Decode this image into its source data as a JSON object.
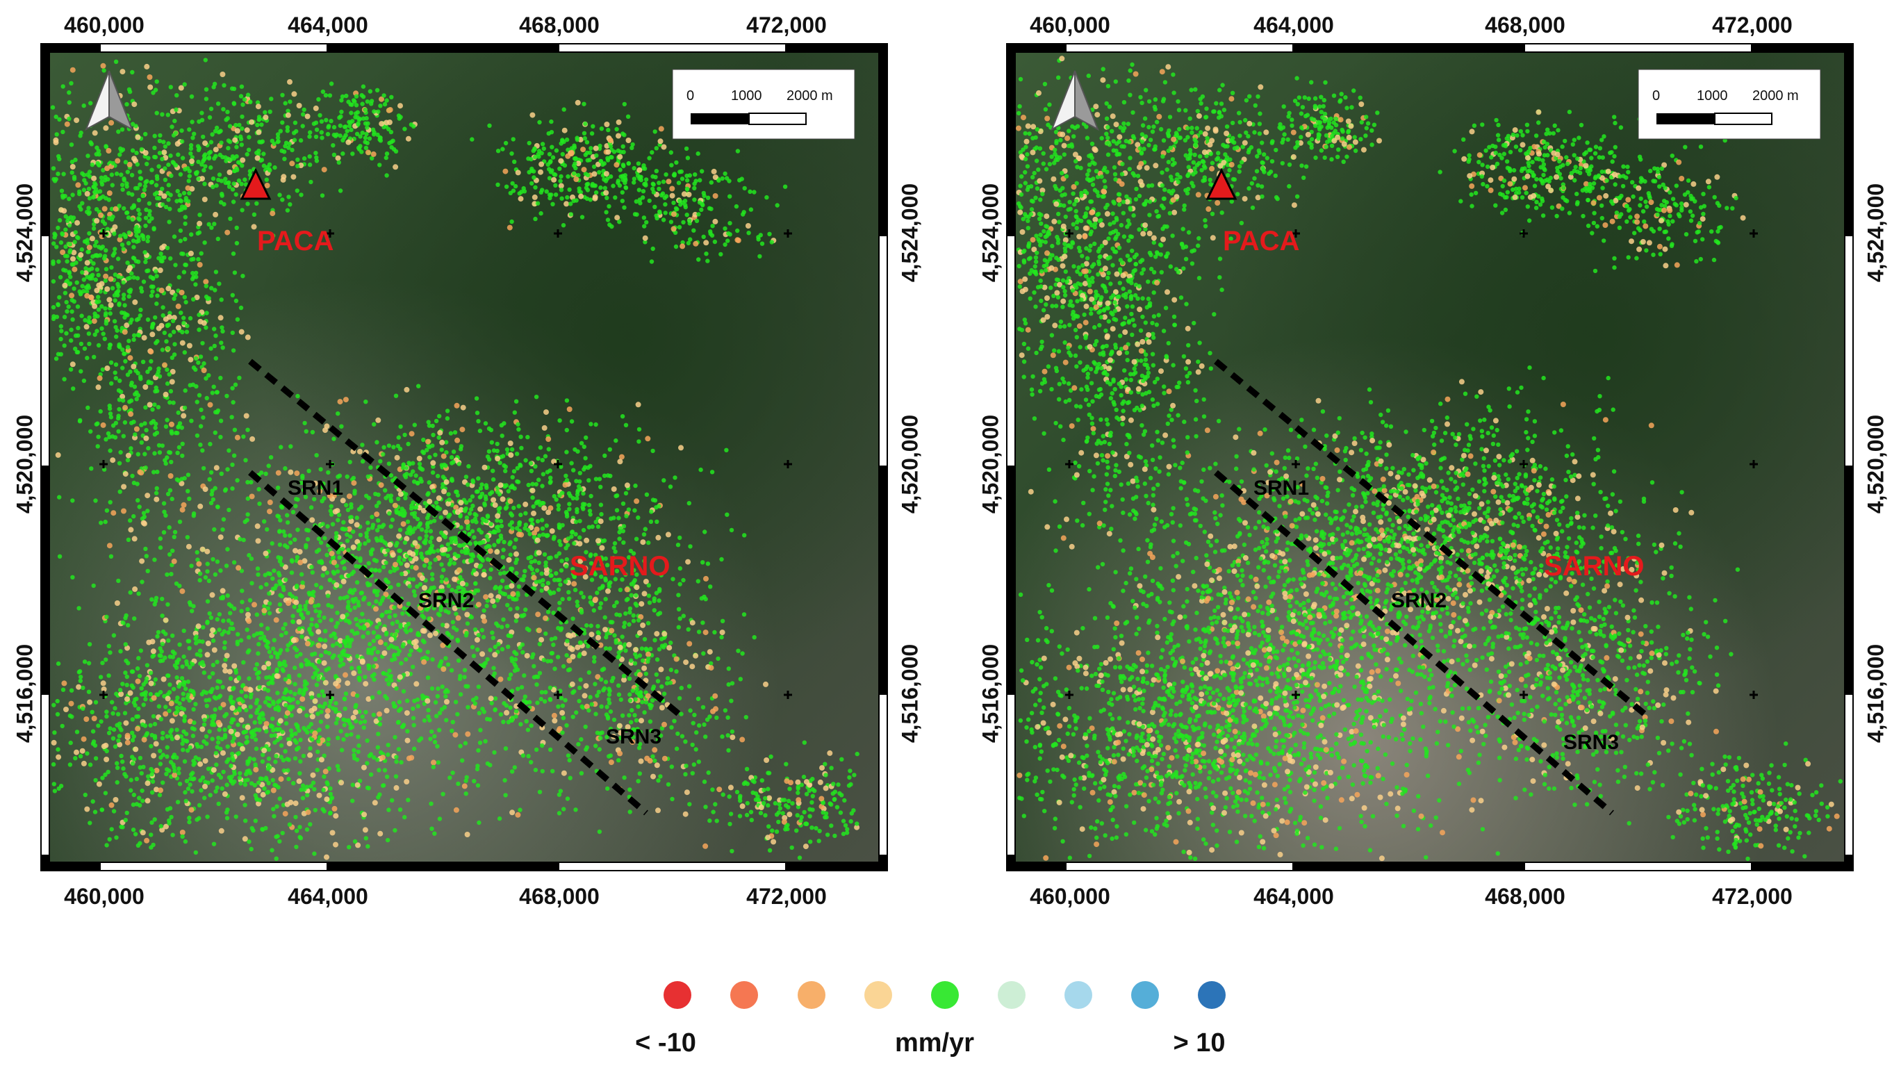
{
  "panels": [
    {
      "id": "left",
      "x_ticks": [
        "460,000",
        "464,000",
        "468,000",
        "472,000"
      ],
      "y_ticks": [
        "4,524,000",
        "4,520,000",
        "4,516,000"
      ],
      "places": [
        {
          "name": "PACA",
          "color": "#e41a1c"
        },
        {
          "name": "SARNO",
          "color": "#e41a1c"
        }
      ],
      "faults": [
        "SRN1",
        "SRN2",
        "SRN3"
      ],
      "scalebar": {
        "labels": [
          "0",
          "1000",
          "2000 m"
        ]
      }
    },
    {
      "id": "right",
      "x_ticks": [
        "460,000",
        "464,000",
        "468,000",
        "472,000"
      ],
      "y_ticks": [
        "4,524,000",
        "4,520,000",
        "4,516,000"
      ],
      "places": [
        {
          "name": "PACA",
          "color": "#e41a1c"
        },
        {
          "name": "SARNO",
          "color": "#e41a1c"
        }
      ],
      "faults": [
        "SRN1",
        "SRN2",
        "SRN3"
      ],
      "scalebar": {
        "labels": [
          "0",
          "1000",
          "2000 m"
        ]
      }
    }
  ],
  "legend": {
    "colors": [
      "#e41a1c",
      "#f4683f",
      "#f6a65a",
      "#f9d08a",
      "#22e61e",
      "#c8ecd0",
      "#9cd4ea",
      "#42a5d4",
      "#1565b0"
    ],
    "labels": {
      "min": "< -10",
      "unit": "mm/yr",
      "max": "> 10"
    }
  },
  "icons": {
    "north_arrow": "north-arrow-icon",
    "station": "triangle-marker-icon"
  }
}
